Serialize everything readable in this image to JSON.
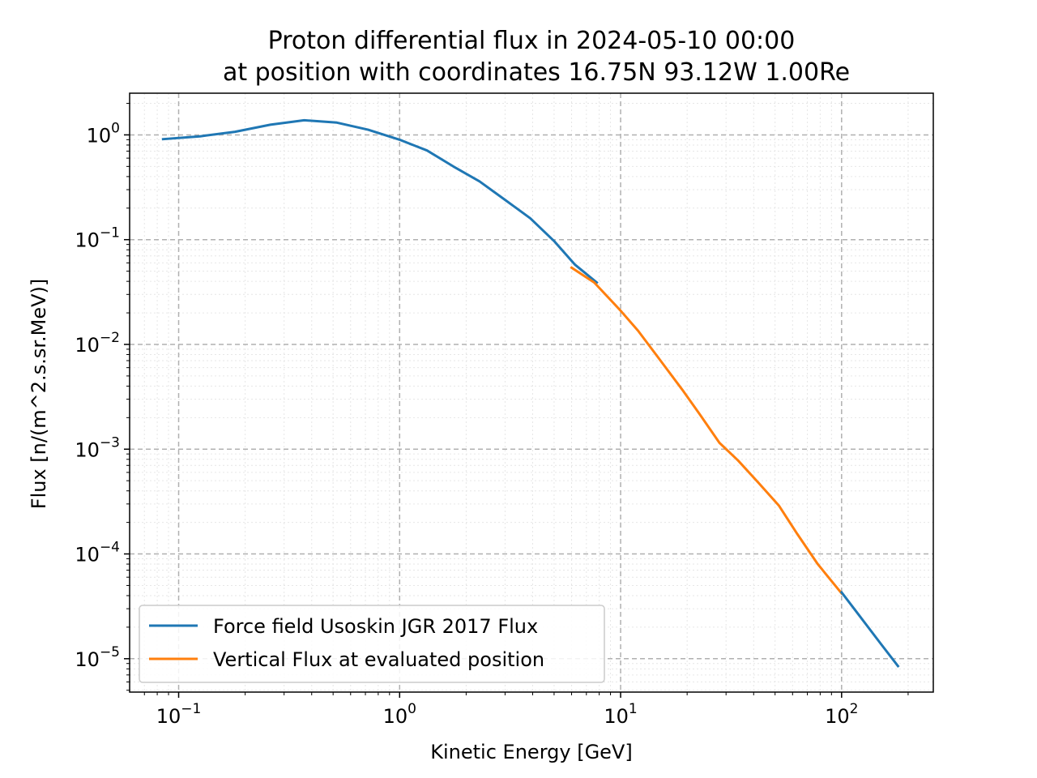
{
  "chart_data": {
    "type": "line",
    "title_line1": "Proton differential flux in 2024-05-10 00:00",
    "title_line2": "at position with coordinates 16.75N 93.12W 1.00Re",
    "xlabel": "Kinetic Energy [GeV]",
    "ylabel": "Flux [n/(m^2.s.sr.MeV)]",
    "xscale": "log",
    "yscale": "log",
    "xlim": [
      0.06,
      260
    ],
    "ylim": [
      4.8e-06,
      2.5
    ],
    "grid": true,
    "legend_position": "lower-left",
    "x_ticks": [
      {
        "base": "10",
        "exp": "−1",
        "value": 0.1
      },
      {
        "base": "10",
        "exp": "0",
        "value": 1
      },
      {
        "base": "10",
        "exp": "1",
        "value": 10
      },
      {
        "base": "10",
        "exp": "2",
        "value": 100
      }
    ],
    "y_ticks": [
      {
        "base": "10",
        "exp": "0",
        "value": 1
      },
      {
        "base": "10",
        "exp": "−1",
        "value": 0.1
      },
      {
        "base": "10",
        "exp": "−2",
        "value": 0.01
      },
      {
        "base": "10",
        "exp": "−3",
        "value": 0.001
      },
      {
        "base": "10",
        "exp": "−4",
        "value": 0.0001
      },
      {
        "base": "10",
        "exp": "−5",
        "value": 1e-05
      }
    ],
    "series": [
      {
        "name": "Force field Usoskin JGR 2017 Flux",
        "color": "#1f77b4",
        "x": [
          0.085,
          0.125,
          0.18,
          0.26,
          0.37,
          0.52,
          0.72,
          1.0,
          1.33,
          1.75,
          2.3,
          3.0,
          3.9,
          5.0,
          6.2,
          7.8
        ],
        "y": [
          0.91,
          0.97,
          1.07,
          1.25,
          1.38,
          1.31,
          1.12,
          0.9,
          0.71,
          0.5,
          0.36,
          0.24,
          0.16,
          0.097,
          0.058,
          0.039
        ]
      },
      {
        "name": "Vertical Flux at evaluated position",
        "color": "#ff7f0e",
        "x": [
          6.0,
          7.6,
          10.0,
          12.0,
          15.0,
          19.0,
          23.0,
          28.0,
          34.0,
          42.0,
          52.0,
          63.0,
          78.0,
          100.0
        ],
        "y": [
          0.054,
          0.039,
          0.021,
          0.0135,
          0.0072,
          0.0037,
          0.0021,
          0.00115,
          0.00078,
          0.00048,
          0.00029,
          0.000155,
          8e-05,
          4.2e-05
        ]
      },
      {
        "name": "",
        "color": "#1f77b4",
        "continuation_of": "Force field Usoskin JGR 2017 Flux",
        "x": [
          100.0,
          120.0,
          150.0,
          180.0
        ],
        "y": [
          4.3e-05,
          2.6e-05,
          1.4e-05,
          8.5e-06
        ]
      }
    ]
  }
}
